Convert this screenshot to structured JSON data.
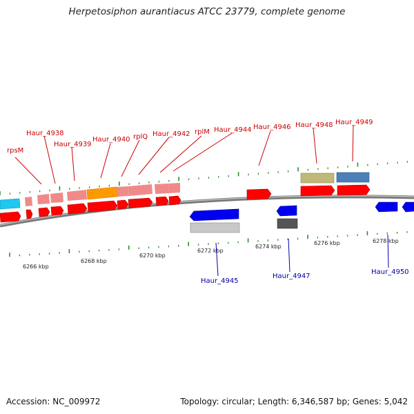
{
  "title": "Herpetosiphon aurantiacus ATCC 23779, complete genome",
  "footer": {
    "accession": "Accession: NC_009972",
    "topology": "Topology: circular; Length: 6,346,587 bp; Genes: 5,042"
  },
  "colors": {
    "forward_label": "#cc0000",
    "reverse_label": "#0000aa",
    "tick": "#2e8b2e",
    "backbone": "#777777"
  },
  "forward_gene_labels": [
    "rpsM",
    "Haur_4938",
    "Haur_4939",
    "Haur_4940",
    "rplQ",
    "Haur_4942",
    "rplM",
    "Haur_4944",
    "Haur_4946",
    "Haur_4948",
    "Haur_4949"
  ],
  "reverse_gene_labels": [
    "Haur_4945",
    "Haur_4947",
    "Haur_4950"
  ],
  "scale_labels": [
    "6266 kbp",
    "6268 kbp",
    "6270 kbp",
    "6272 kbp",
    "6274 kbp",
    "6276 kbp",
    "6278 kbp"
  ]
}
